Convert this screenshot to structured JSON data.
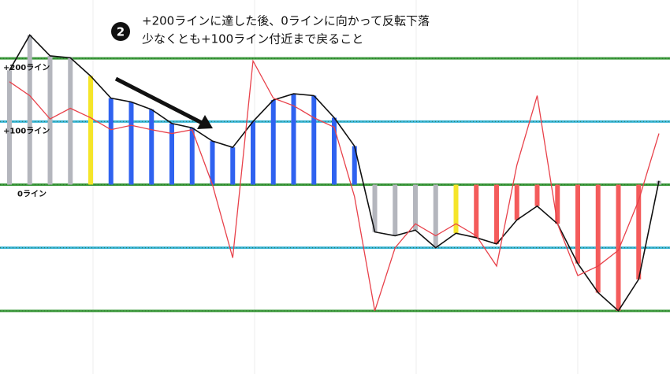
{
  "chart_data": {
    "type": "bar",
    "annotation": {
      "number": "2",
      "lines": [
        "+200ラインに達した後、0ラインに向かって反転下落",
        "少なくとも+100ライン付近まで戻ること"
      ]
    },
    "ylim": [
      -300,
      292.5
    ],
    "yticks": [
      {
        "value": 200,
        "label": "+200ライン"
      },
      {
        "value": 100,
        "label": "+100ライン"
      },
      {
        "value": 0,
        "label": "0ライン"
      },
      -100,
      -200
    ],
    "level_colors": [
      "#3c9a3c",
      "#3bb5d6",
      "#3c9a3c",
      "#3bb5d6",
      "#3c9a3c"
    ],
    "values": [
      181,
      237,
      204,
      201,
      172,
      137,
      131,
      119,
      97,
      90,
      69,
      59,
      100,
      134,
      144,
      141,
      106,
      61,
      -75,
      -81,
      -72,
      -100,
      -77,
      -84,
      -94,
      -56,
      -34,
      -62,
      -125,
      -171,
      -200,
      -150,
      6
    ],
    "colors": [
      "#b4b6bd",
      "#b4b6bd",
      "#b4b6bd",
      "#b4b6bd",
      "#f5e52a",
      "#2f62f0",
      "#2f62f0",
      "#2f62f0",
      "#2f62f0",
      "#2f62f0",
      "#2f62f0",
      "#2f62f0",
      "#2f62f0",
      "#2f62f0",
      "#2f62f0",
      "#2f62f0",
      "#2f62f0",
      "#2f62f0",
      "#b4b6bd",
      "#b4b6bd",
      "#b4b6bd",
      "#b4b6bd",
      "#f5e52a",
      "#f45b5b",
      "#f45b5b",
      "#f45b5b",
      "#f45b5b",
      "#f45b5b",
      "#f45b5b",
      "#f45b5b",
      "#f45b5b",
      "#f45b5b",
      "#b4b6bd"
    ],
    "lines": [
      {
        "color": "#111111",
        "values": [
          181,
          237,
          204,
          201,
          172,
          137,
          131,
          119,
          97,
          90,
          69,
          59,
          100,
          134,
          144,
          141,
          106,
          61,
          -75,
          -81,
          -72,
          -100,
          -77,
          -84,
          -94,
          -56,
          -34,
          -62,
          -125,
          -171,
          -200,
          -150,
          6
        ]
      },
      {
        "color": "#e8414a",
        "values": [
          163,
          141,
          104,
          121,
          106,
          87,
          94,
          87,
          81,
          87,
          0,
          -116,
          196,
          137,
          125,
          106,
          91,
          -19,
          -200,
          -100,
          -62,
          -81,
          -62,
          -81,
          -129,
          31,
          141,
          -62,
          -144,
          -129,
          -104,
          -25,
          81
        ]
      }
    ]
  }
}
